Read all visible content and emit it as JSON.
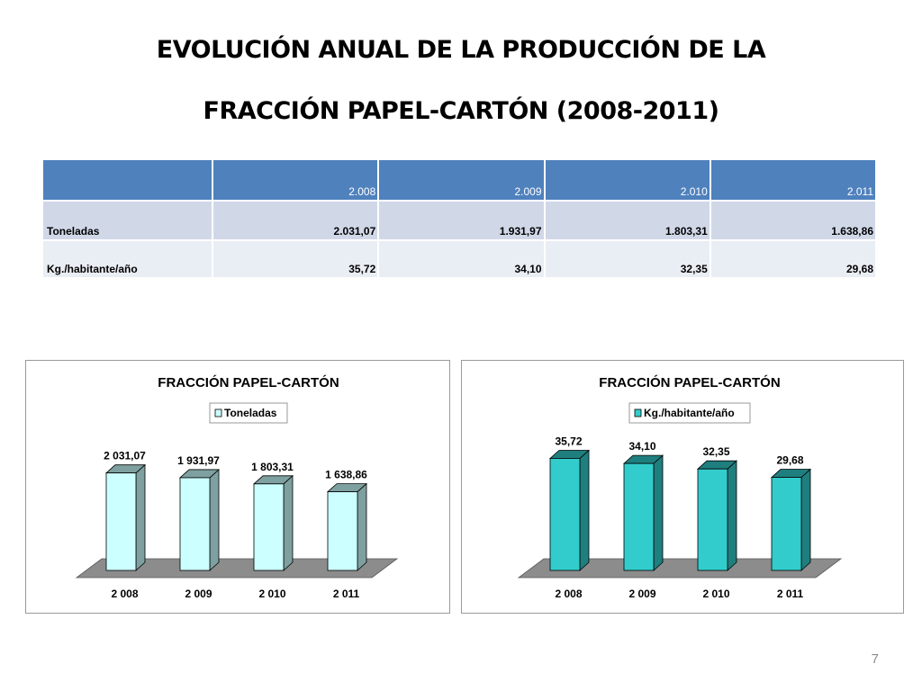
{
  "page": {
    "title_line1": "EVOLUCIÓN ANUAL DE LA PRODUCCIÓN DE LA",
    "title_line2": "FRACCIÓN PAPEL-CARTÓN (2008-2011)",
    "page_number": "7"
  },
  "table": {
    "header": [
      "",
      "2.008",
      "2.009",
      "2.010",
      "2.011"
    ],
    "rows": [
      {
        "label": "Toneladas",
        "values": [
          "2.031,07",
          "1.931,97",
          "1.803,31",
          "1.638,86"
        ]
      },
      {
        "label": "Kg./habitante/año",
        "values": [
          "35,72",
          "34,10",
          "32,35",
          "29,68"
        ]
      }
    ]
  },
  "colors": {
    "table_header": "#4f81bd",
    "table_row_1": "#d0d8e8",
    "table_row_2": "#e9edf4",
    "chart1_bar_front": "#ccffff",
    "chart1_bar_side": "#7fa0a0",
    "chart2_bar_front": "#33cccc",
    "chart2_bar_side": "#1f7f7f",
    "floor": "#8c8c8c"
  },
  "chart_data": [
    {
      "type": "bar",
      "title": "FRACCIÓN PAPEL-CARTÓN",
      "categories": [
        "2 008",
        "2 009",
        "2 010",
        "2 011"
      ],
      "series": [
        {
          "name": "Toneladas",
          "values": [
            2031.07,
            1931.97,
            1803.31,
            1638.86
          ]
        }
      ],
      "data_labels": [
        "2 031,07",
        "1 931,97",
        "1 803,31",
        "1 638,86"
      ],
      "legend": "top-center",
      "grid": false,
      "ylim": [
        0,
        2100
      ]
    },
    {
      "type": "bar",
      "title": "FRACCIÓN PAPEL-CARTÓN",
      "categories": [
        "2 008",
        "2 009",
        "2 010",
        "2 011"
      ],
      "series": [
        {
          "name": "Kg./habitante/año",
          "values": [
            35.72,
            34.1,
            32.35,
            29.68
          ]
        }
      ],
      "data_labels": [
        "35,72",
        "34,10",
        "32,35",
        "29,68"
      ],
      "legend": "top-center",
      "grid": false,
      "ylim": [
        0,
        37
      ]
    }
  ]
}
